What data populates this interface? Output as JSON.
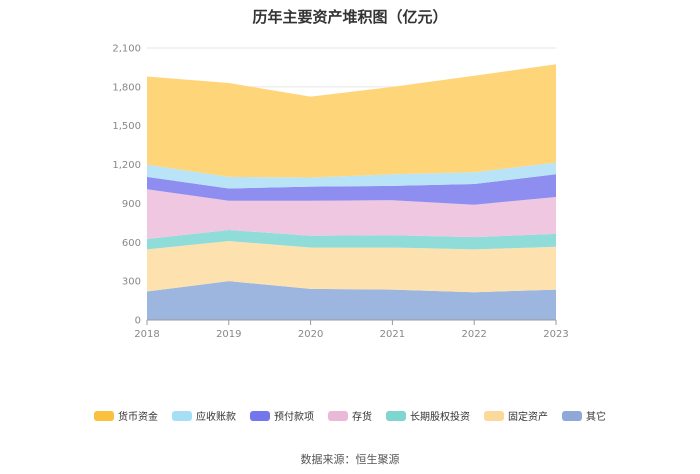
{
  "chart_data": {
    "type": "area",
    "stacked": true,
    "title": "历年主要资产堆积图（亿元）",
    "x": [
      "2018",
      "2019",
      "2020",
      "2021",
      "2022",
      "2023"
    ],
    "yticks": [
      "0",
      "300",
      "600",
      "900",
      "1,200",
      "1,500",
      "1,800",
      "2,100"
    ],
    "ylim": [
      0,
      2100
    ],
    "grid": true,
    "legend_position": "bottom",
    "series": [
      {
        "name": "其它",
        "color": "#9db6e0",
        "values": [
          220,
          300,
          240,
          235,
          215,
          235
        ]
      },
      {
        "name": "固定资产",
        "color": "#fde2b0",
        "values": [
          325,
          310,
          320,
          325,
          330,
          330
        ]
      },
      {
        "name": "长期股权投资",
        "color": "#8fdcd8",
        "values": [
          80,
          85,
          90,
          95,
          95,
          100
        ]
      },
      {
        "name": "存货",
        "color": "#f0c7e1",
        "values": [
          385,
          225,
          270,
          270,
          250,
          285
        ]
      },
      {
        "name": "预付款项",
        "color": "#8e8ef0",
        "values": [
          95,
          95,
          110,
          110,
          160,
          175
        ]
      },
      {
        "name": "应收账款",
        "color": "#b9e4f7",
        "values": [
          95,
          90,
          70,
          90,
          90,
          90
        ]
      },
      {
        "name": "货币资金",
        "color": "#ffd57a",
        "values": [
          680,
          725,
          625,
          675,
          745,
          760
        ]
      }
    ]
  },
  "legend": [
    {
      "label": "货币资金",
      "color": "#f8c23f"
    },
    {
      "label": "应收账款",
      "color": "#a5def5"
    },
    {
      "label": "预付款项",
      "color": "#7575ee"
    },
    {
      "label": "存货",
      "color": "#ecb8d8"
    },
    {
      "label": "长期股权投资",
      "color": "#7fd6d1"
    },
    {
      "label": "固定资产",
      "color": "#fcd99a"
    },
    {
      "label": "其它",
      "color": "#8ea8d8"
    }
  ],
  "source": "数据来源：恒生聚源"
}
